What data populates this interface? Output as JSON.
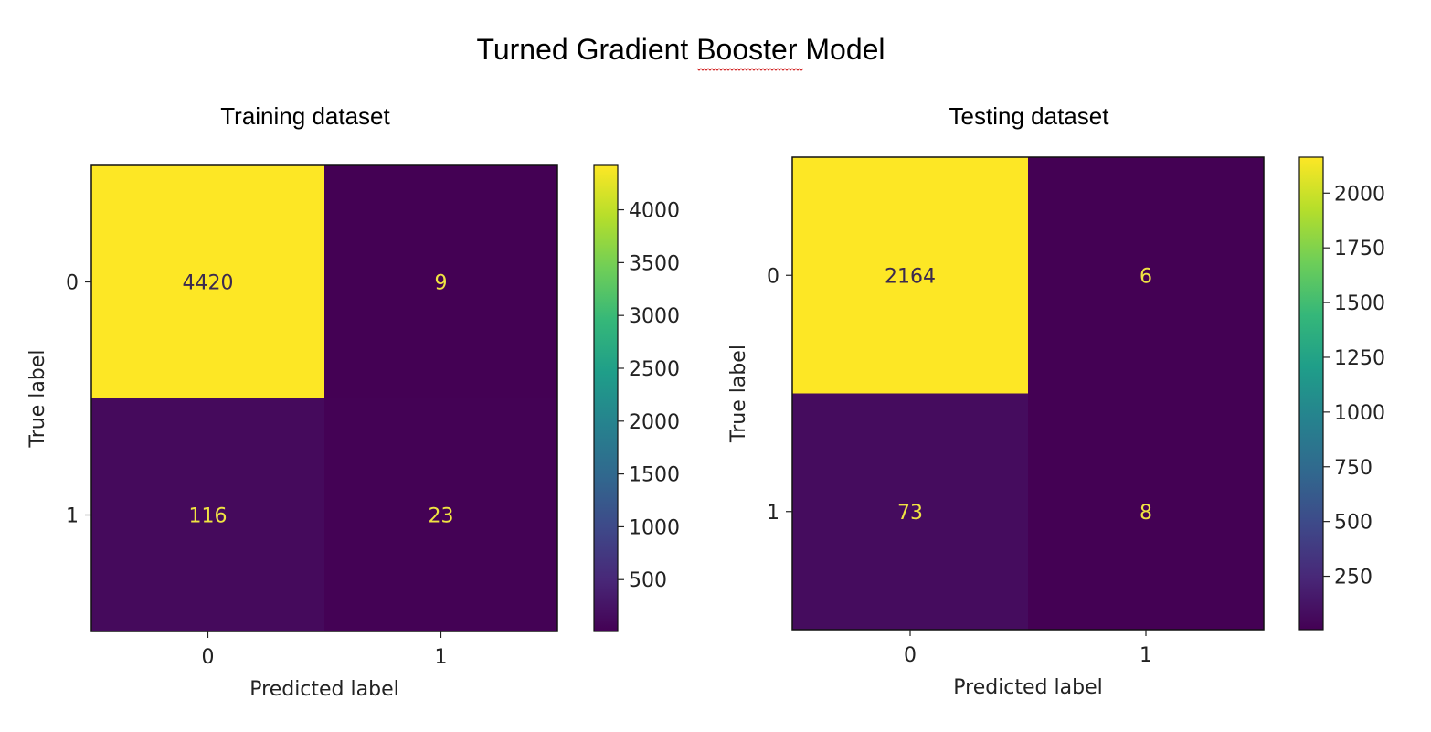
{
  "title": "Turned Gradient Booster Model",
  "colormap": {
    "stops": [
      "#440154",
      "#482878",
      "#3e4989",
      "#31688e",
      "#26828e",
      "#1f9e89",
      "#35b779",
      "#6ece58",
      "#b5de2b",
      "#fde725"
    ],
    "text_on_dark": "#f0e442",
    "text_on_light": "#3b2a4f"
  },
  "chart_data": [
    {
      "type": "heatmap",
      "title": "Training dataset",
      "xlabel": "Predicted label",
      "ylabel": "True label",
      "x_ticks": [
        "0",
        "1"
      ],
      "y_ticks": [
        "0",
        "1"
      ],
      "matrix": [
        [
          4420,
          9
        ],
        [
          116,
          23
        ]
      ],
      "cell_labels": [
        [
          "4420",
          "9"
        ],
        [
          "116",
          "23"
        ]
      ],
      "colorbar": {
        "range": [
          9,
          4420
        ],
        "ticks": [
          500,
          1000,
          1500,
          2000,
          2500,
          3000,
          3500,
          4000
        ],
        "tick_labels": [
          "500",
          "1000",
          "1500",
          "2000",
          "2500",
          "3000",
          "3500",
          "4000"
        ]
      }
    },
    {
      "type": "heatmap",
      "title": "Testing dataset",
      "xlabel": "Predicted label",
      "ylabel": "True label",
      "x_ticks": [
        "0",
        "1"
      ],
      "y_ticks": [
        "0",
        "1"
      ],
      "matrix": [
        [
          2164,
          6
        ],
        [
          73,
          8
        ]
      ],
      "cell_labels": [
        [
          "2164",
          "6"
        ],
        [
          "73",
          "8"
        ]
      ],
      "colorbar": {
        "range": [
          6,
          2164
        ],
        "ticks": [
          250,
          500,
          750,
          1000,
          1250,
          1500,
          1750,
          2000
        ],
        "tick_labels": [
          "250",
          "500",
          "750",
          "1000",
          "1250",
          "1500",
          "1750",
          "2000"
        ]
      }
    }
  ]
}
